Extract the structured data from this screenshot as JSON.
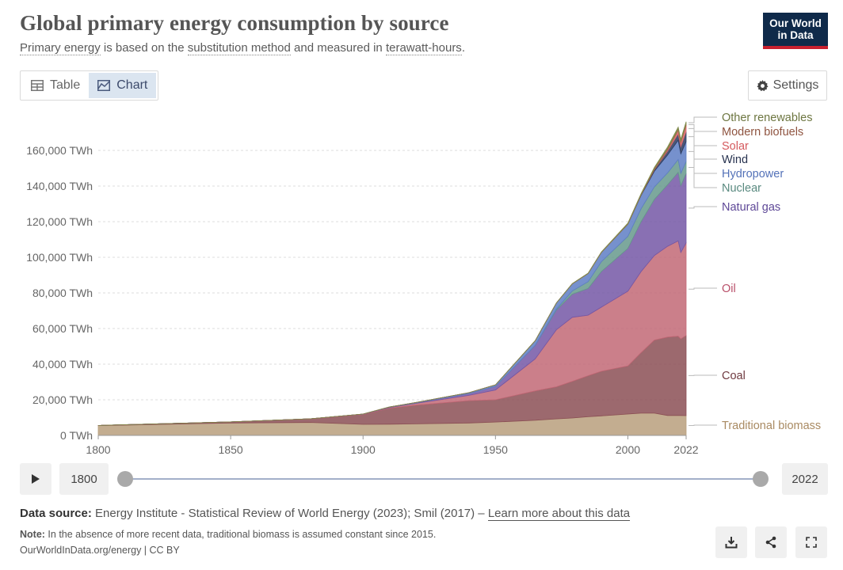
{
  "header": {
    "title": "Global primary energy consumption by source",
    "subtitle_pre": "Primary energy",
    "subtitle_mid1": " is based on the ",
    "subtitle_link1": "substitution method",
    "subtitle_mid2": " and measured in ",
    "subtitle_link2": "terawatt-hours",
    "subtitle_end": ".",
    "logo_line1": "Our World",
    "logo_line2": "in Data"
  },
  "tabs": {
    "table_label": "Table",
    "chart_label": "Chart"
  },
  "settings_label": "Settings",
  "timeline": {
    "start_year": "1800",
    "end_year": "2022"
  },
  "footer": {
    "source_label": "Data source:",
    "source_text": " Energy Institute - Statistical Review of World Energy (2023); Smil (2017) – ",
    "learn_more": "Learn more about this data",
    "note_label": "Note:",
    "note_text": " In the absence of more recent data, traditional biomass is assumed constant since 2015.",
    "credit": "OurWorldInData.org/energy | CC BY"
  },
  "colors": {
    "traditional_biomass": "#b89f7d",
    "coal": "#8b4f55",
    "oil": "#c26876",
    "natural_gas": "#7457a6",
    "nuclear": "#66998c",
    "hydropower": "#5e7ec4",
    "wind": "#2c3a5e",
    "solar": "#d9666a",
    "modern_biofuels": "#a8654c",
    "other_renewables": "#7f8a4a"
  },
  "chart_data": {
    "type": "area",
    "stacked": true,
    "title": "Global primary energy consumption by source",
    "ylabel": "TWh",
    "ylim": [
      0,
      180000
    ],
    "yticks": [
      0,
      20000,
      40000,
      60000,
      80000,
      100000,
      120000,
      140000,
      160000
    ],
    "ytick_labels": [
      "0 TWh",
      "20,000 TWh",
      "40,000 TWh",
      "60,000 TWh",
      "80,000 TWh",
      "100,000 TWh",
      "120,000 TWh",
      "140,000 TWh",
      "160,000 TWh"
    ],
    "xlim": [
      1800,
      2022
    ],
    "xticks": [
      1800,
      1850,
      1900,
      1950,
      2000,
      2022
    ],
    "xtick_labels": [
      "1800",
      "1850",
      "1900",
      "1950",
      "2000",
      "2022"
    ],
    "x": [
      1800,
      1850,
      1880,
      1900,
      1910,
      1920,
      1940,
      1950,
      1965,
      1973,
      1979,
      1985,
      1990,
      2000,
      2005,
      2010,
      2015,
      2019,
      2020,
      2022
    ],
    "series": [
      {
        "name": "Traditional biomass",
        "values": [
          5500,
          7000,
          7300,
          6200,
          6300,
          6500,
          7000,
          7500,
          8500,
          9300,
          9800,
          10500,
          11000,
          12000,
          12500,
          12500,
          11200,
          11200,
          11200,
          11100
        ]
      },
      {
        "name": "Coal",
        "values": [
          100,
          600,
          2000,
          5500,
          9000,
          10500,
          12500,
          12500,
          16500,
          18000,
          20500,
          23000,
          25000,
          27000,
          34000,
          41000,
          44000,
          44500,
          43000,
          45000
        ]
      },
      {
        "name": "Oil",
        "values": [
          0,
          0,
          50,
          200,
          400,
          1000,
          3000,
          5500,
          18000,
          32000,
          36000,
          34000,
          36000,
          42000,
          45500,
          47500,
          51000,
          53500,
          48500,
          52000
        ]
      },
      {
        "name": "Natural gas",
        "values": [
          0,
          0,
          0,
          70,
          200,
          300,
          1000,
          2000,
          7500,
          11000,
          13000,
          15000,
          20000,
          24000,
          28000,
          31500,
          34500,
          38500,
          37500,
          39000
        ]
      },
      {
        "name": "Nuclear",
        "values": [
          0,
          0,
          0,
          0,
          0,
          0,
          0,
          0,
          70,
          600,
          1800,
          3800,
          5500,
          6800,
          7300,
          7000,
          6700,
          7200,
          6900,
          6700
        ]
      },
      {
        "name": "Hydropower",
        "values": [
          0,
          0,
          0,
          20,
          100,
          200,
          500,
          900,
          2600,
          3400,
          4000,
          4600,
          5200,
          6800,
          7500,
          8800,
          10000,
          10800,
          11000,
          11200
        ]
      },
      {
        "name": "Wind",
        "values": [
          0,
          0,
          0,
          0,
          0,
          0,
          0,
          0,
          0,
          0,
          0,
          0,
          10,
          80,
          300,
          900,
          2200,
          3600,
          4000,
          5500
        ]
      },
      {
        "name": "Solar",
        "values": [
          0,
          0,
          0,
          0,
          0,
          0,
          0,
          0,
          0,
          0,
          0,
          0,
          1,
          5,
          20,
          90,
          650,
          1900,
          2300,
          3500
        ]
      },
      {
        "name": "Modern biofuels",
        "values": [
          0,
          0,
          0,
          0,
          0,
          0,
          0,
          0,
          0,
          0,
          50,
          100,
          100,
          150,
          250,
          600,
          800,
          900,
          850,
          1000
        ]
      },
      {
        "name": "Other renewables",
        "values": [
          0,
          0,
          0,
          0,
          0,
          0,
          0,
          0,
          20,
          40,
          80,
          150,
          200,
          350,
          450,
          600,
          900,
          1000,
          1000,
          1100
        ]
      }
    ]
  }
}
